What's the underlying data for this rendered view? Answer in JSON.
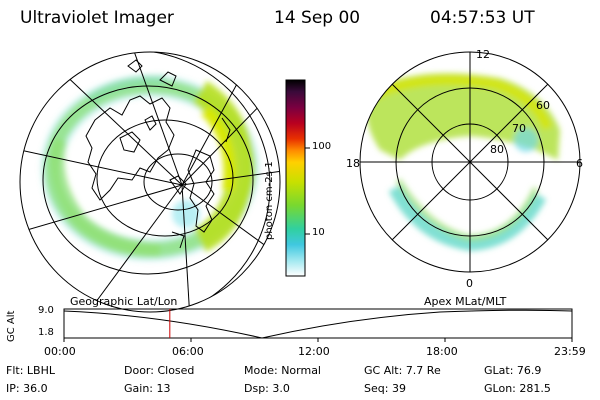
{
  "header": {
    "instrument": "Ultraviolet Imager",
    "date": "14 Sep 00",
    "time": "04:57:53 UT"
  },
  "colorbar": {
    "unit": "photon cm-2s-1",
    "ticks": [
      "100",
      "10"
    ],
    "colors": [
      "#000000",
      "#3a0a3a",
      "#7a0040",
      "#b80020",
      "#e83000",
      "#ff8c00",
      "#ffd000",
      "#c8e000",
      "#78d830",
      "#30d0a0",
      "#40c8e0",
      "#a0e8f0",
      "#ffffff"
    ]
  },
  "geo_map": {
    "label": "Geographic Lat/Lon"
  },
  "polar_plot": {
    "label": "Apex MLat/MLT",
    "mlt_labels": {
      "top": "12",
      "left": "18",
      "right": "6",
      "bottom": "0"
    },
    "lat_labels": [
      "60",
      "70",
      "80"
    ]
  },
  "altitude_plot": {
    "ylabel": "GC Alt",
    "yticks": [
      "9.0",
      "1.8"
    ],
    "xticks": [
      "00:00",
      "06:00",
      "12:00",
      "18:00",
      "23:59"
    ],
    "current_time_fraction": 0.2083,
    "marker_color": "#cc0000"
  },
  "footer": {
    "row1": [
      {
        "key": "Flt:",
        "value": "LBHL"
      },
      {
        "key": "Door:",
        "value": "Closed"
      },
      {
        "key": "Mode:",
        "value": "Normal"
      },
      {
        "key": "GC Alt:",
        "value": "7.7 Re"
      },
      {
        "key": "GLat:",
        "value": "76.9"
      }
    ],
    "row2": [
      {
        "key": "IP:",
        "value": "36.0"
      },
      {
        "key": "Gain:",
        "value": "13"
      },
      {
        "key": "Dsp:",
        "value": "3.0"
      },
      {
        "key": "Seq:",
        "value": "39"
      },
      {
        "key": "GLon:",
        "value": "281.5"
      }
    ]
  }
}
